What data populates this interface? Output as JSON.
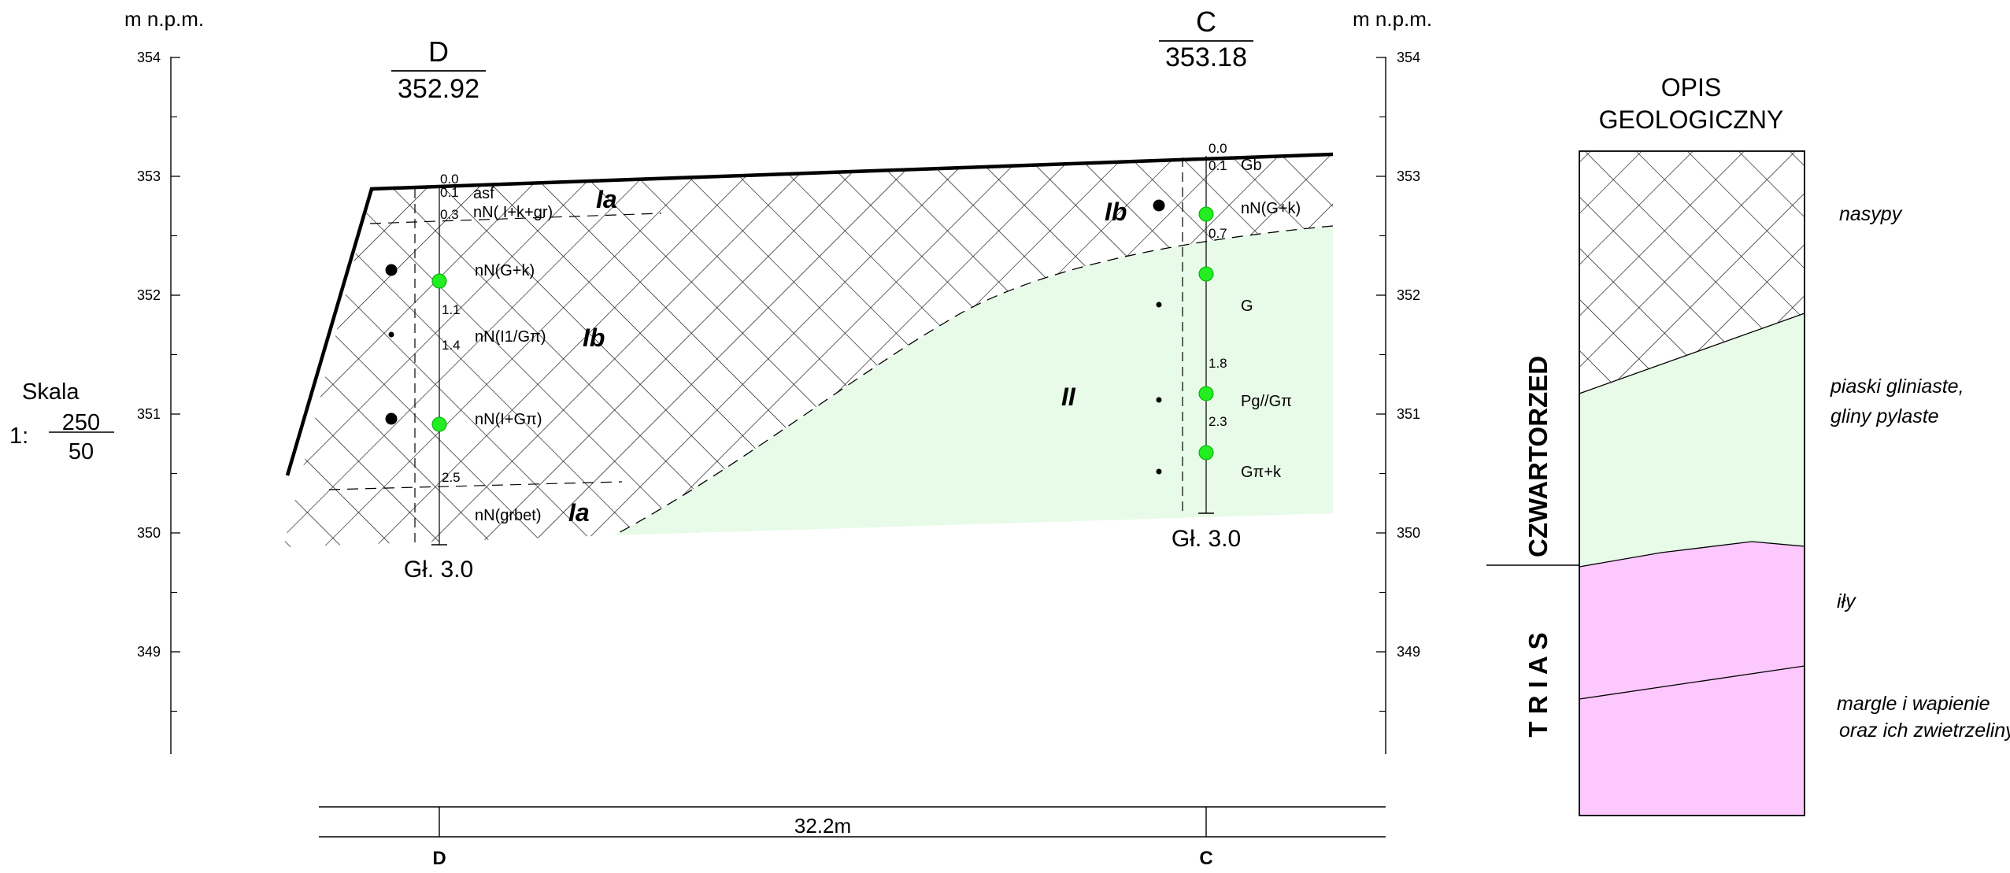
{
  "axis_unit_label": "m n.p.m.",
  "elevation_ticks": [
    "354",
    "353",
    "352",
    "351",
    "350",
    "349"
  ],
  "scale": {
    "title": "Skala",
    "prefix": "1:",
    "numerator": "250",
    "denominator": "50"
  },
  "boreholes": [
    {
      "id": "D",
      "elevation": "352.92",
      "depth_label": "Gł. 3.0",
      "depths": [
        "0.0",
        "0.1",
        "0.3",
        "1.1",
        "1.4",
        "2.5"
      ],
      "layers": [
        "asf",
        "nN( I+k+gr)",
        "nN(G+k)",
        "nN(I1/Gπ)",
        "nN(I+Gπ)",
        "nN(grbet)"
      ]
    },
    {
      "id": "C",
      "elevation": "353.18",
      "depth_label": "Gł. 3.0",
      "depths": [
        "0.0",
        "0.1",
        "0.7",
        "1.8",
        "2.3"
      ],
      "layers": [
        "Gb",
        "nN(G+k)",
        "G",
        "Pg//Gπ",
        "Gπ+k"
      ]
    }
  ],
  "zone_labels": [
    "Ia",
    "Ib",
    "Ia",
    "Ib",
    "II"
  ],
  "distance": {
    "value": "32.2m",
    "left_label": "D",
    "right_label": "C"
  },
  "legend": {
    "title_line1": "OPIS",
    "title_line2": "GEOLOGICZNY",
    "period_quaternary": "CZWARTORZED",
    "period_triassic": "T R I A S",
    "descriptions": {
      "fill": "nasypy",
      "sand_line1": "piaski gliniaste,",
      "sand_line2": "gliny pylaste",
      "clay": "iły",
      "marl_line1": "margle i wapienie",
      "marl_line2": "oraz ich zwietrzeliny"
    }
  },
  "colors": {
    "sand_fill": "#e8fbe8",
    "clay_fill": "#fdc8fd",
    "sample_marker": "#22ee22",
    "line": "#000000"
  }
}
